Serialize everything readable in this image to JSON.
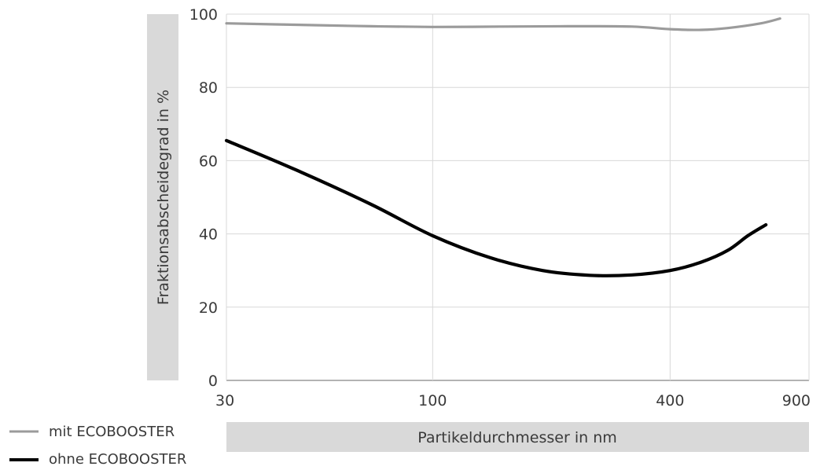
{
  "chart_data": {
    "type": "line",
    "title": "",
    "xlabel": "Partikeldurchmesser in nm",
    "ylabel": "Fraktionsabscheidegrad in %",
    "x_scale": "log",
    "xlim": [
      30,
      900
    ],
    "ylim": [
      0,
      100
    ],
    "x_ticks": [
      30,
      100,
      400,
      900
    ],
    "y_ticks": [
      0,
      20,
      40,
      60,
      80,
      100
    ],
    "grid": true,
    "legend_position": "bottom-left",
    "series": [
      {
        "name": "mit ECOBOOSTER",
        "color": "#9b9b9b",
        "points": [
          [
            30,
            97.5
          ],
          [
            50,
            97
          ],
          [
            70,
            96.7
          ],
          [
            100,
            96.5
          ],
          [
            150,
            96.6
          ],
          [
            220,
            96.7
          ],
          [
            320,
            96.6
          ],
          [
            400,
            95.9
          ],
          [
            480,
            95.7
          ],
          [
            560,
            96.2
          ],
          [
            680,
            97.5
          ],
          [
            760,
            98.8
          ]
        ]
      },
      {
        "name": "ohne ECOBOOSTER",
        "color": "#000000",
        "points": [
          [
            30,
            65.5
          ],
          [
            45,
            57.5
          ],
          [
            70,
            48
          ],
          [
            100,
            39.5
          ],
          [
            140,
            33.5
          ],
          [
            190,
            30
          ],
          [
            250,
            28.7
          ],
          [
            320,
            28.8
          ],
          [
            400,
            30
          ],
          [
            480,
            32.3
          ],
          [
            560,
            35.5
          ],
          [
            630,
            39.5
          ],
          [
            700,
            42.5
          ]
        ]
      }
    ]
  }
}
